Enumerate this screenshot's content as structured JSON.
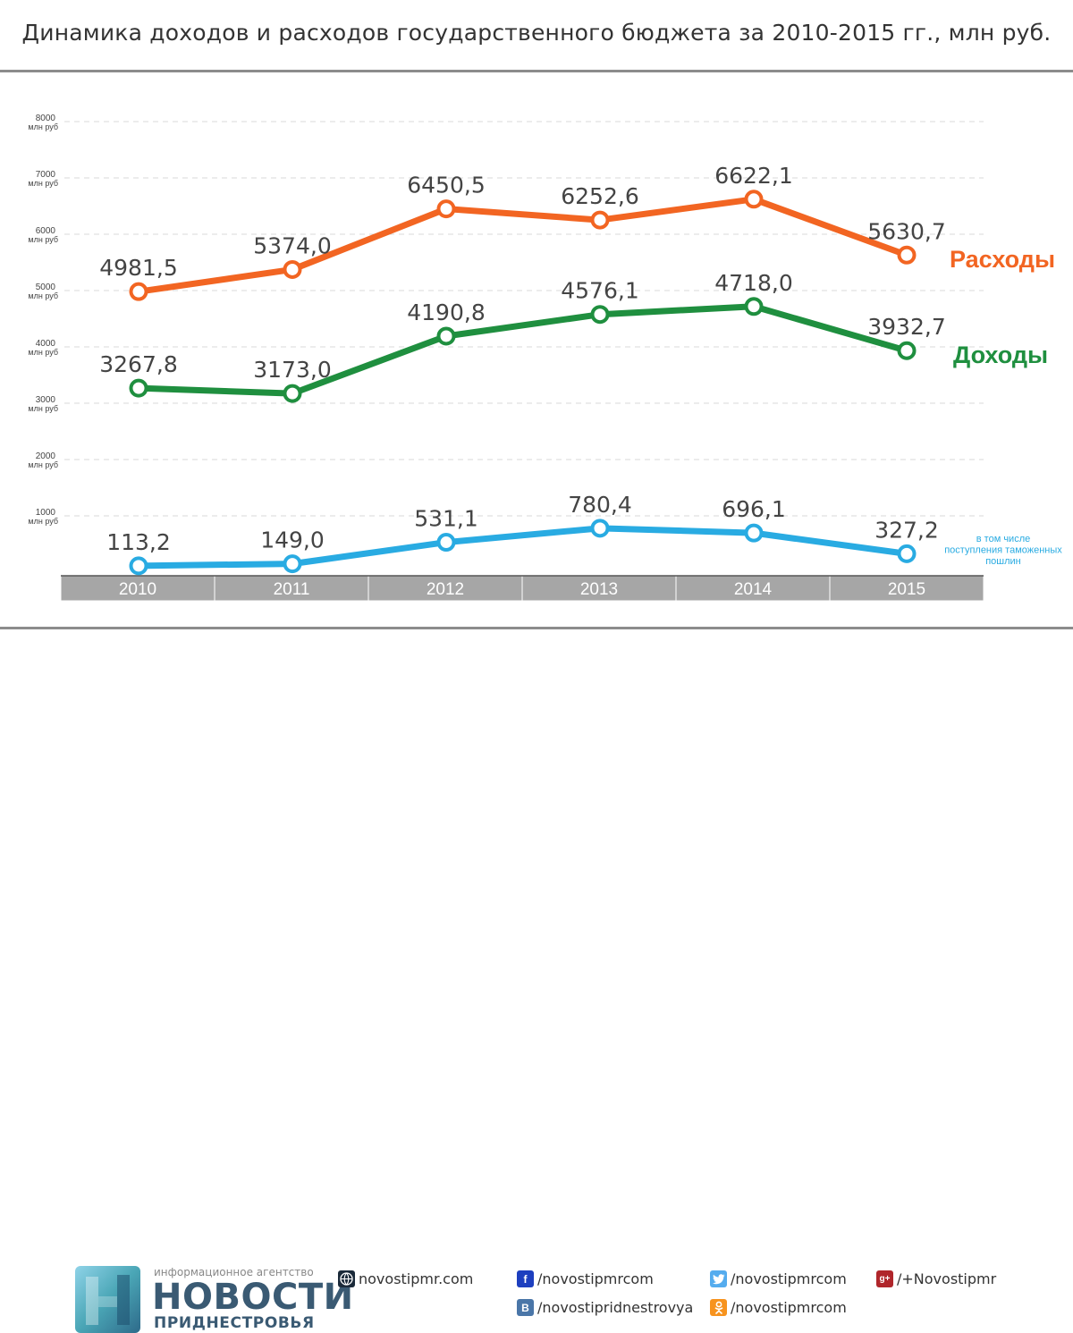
{
  "title": "Динамика доходов и расходов государственного бюджета за 2010-2015 гг., млн руб.",
  "chart_data": {
    "type": "line",
    "title": "Динамика доходов и расходов государственного бюджета за 2010-2015 гг., млн руб.",
    "categories": [
      "2010",
      "2011",
      "2012",
      "2013",
      "2014",
      "2015"
    ],
    "ylim": [
      0,
      8000
    ],
    "yticks": [
      1000,
      2000,
      3000,
      4000,
      5000,
      6000,
      7000,
      8000
    ],
    "ytick_unit": "млн руб",
    "grid": true,
    "series": [
      {
        "key": "expenses",
        "name": "Расходы",
        "color": "#f26522",
        "values": [
          4981.5,
          5374.0,
          6450.5,
          6252.6,
          6622.1,
          5630.7
        ],
        "labels": [
          "4981,5",
          "5374,0",
          "6450,5",
          "6252,6",
          "6622,1",
          "5630,7"
        ]
      },
      {
        "key": "income",
        "name": "Доходы",
        "color": "#1f8f3f",
        "values": [
          3267.8,
          3173.0,
          4190.8,
          4576.1,
          4718.0,
          3932.7
        ],
        "labels": [
          "3267,8",
          "3173,0",
          "4190,8",
          "4576,1",
          "4718,0",
          "3932,7"
        ]
      },
      {
        "key": "customs",
        "name": "в том числе поступления таможенных пошлин",
        "color": "#29abe2",
        "name_lines": [
          "в том числе",
          "поступления таможенных",
          "пошлин"
        ],
        "values": [
          113.2,
          149.0,
          531.1,
          780.4,
          696.1,
          327.2
        ],
        "labels": [
          "113,2",
          "149,0",
          "531,1",
          "780,4",
          "696,1",
          "327,2"
        ]
      }
    ]
  },
  "footer": {
    "agency_small": "информационное агентство",
    "agency_big": "НОВОСТИ",
    "agency_sub": "ПРИДНЕСТРОВЬЯ",
    "links": [
      {
        "icon": "globe-icon",
        "glyph": "",
        "text": "novostipmr.com",
        "color": "#1b2a3a"
      },
      {
        "icon": "facebook-icon",
        "glyph": "f",
        "text": "/novostipmrcom",
        "color": "#1d3fbf"
      },
      {
        "icon": "twitter-icon",
        "glyph": "",
        "text": "/novostipmrcom",
        "color": "#55acee"
      },
      {
        "icon": "google-plus-icon",
        "glyph": "g+",
        "text": "/+Novostipmr",
        "color": "#b0262b"
      },
      {
        "icon": "vk-icon",
        "glyph": "В",
        "text": "/novostipridnestrovya",
        "color": "#4a76a8"
      },
      {
        "icon": "odnoklassniki-icon",
        "glyph": "",
        "text": "/novostipmrcom",
        "color": "#f7931e"
      }
    ]
  }
}
